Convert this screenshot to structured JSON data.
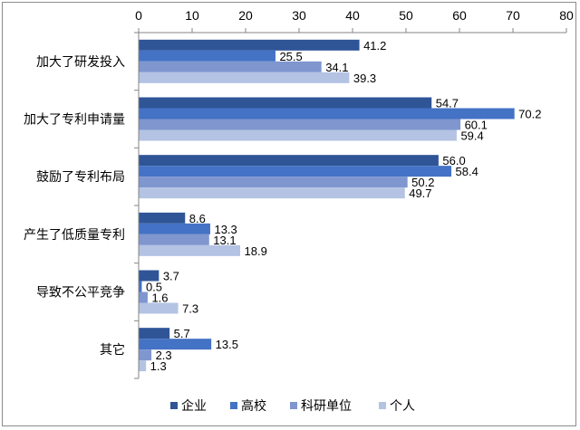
{
  "chart_data": {
    "type": "bar",
    "orientation": "horizontal",
    "title": "",
    "xlabel": "",
    "ylabel": "",
    "xlim": [
      0,
      80
    ],
    "x_ticks": [
      0,
      10,
      20,
      30,
      40,
      50,
      60,
      70,
      80
    ],
    "x_axis_position": "top",
    "grid": false,
    "legend_position": "bottom",
    "categories": [
      "加大了研发投入",
      "加大了专利申请量",
      "鼓励了专利布局",
      "产生了低质量专利",
      "导致不公平竞争",
      "其它"
    ],
    "series": [
      {
        "name": "企业",
        "color": "#2f5597",
        "values": [
          41.2,
          54.7,
          56.0,
          8.6,
          3.7,
          5.7
        ],
        "labels": [
          "41.2",
          "54.7",
          "56.0",
          "8.6",
          "3.7",
          "5.7"
        ]
      },
      {
        "name": "高校",
        "color": "#4472c4",
        "values": [
          25.5,
          70.2,
          58.4,
          13.3,
          0.5,
          13.5
        ],
        "labels": [
          "25.5",
          "70.2",
          "58.4",
          "13.3",
          "0.5",
          "13.5"
        ]
      },
      {
        "name": "科研单位",
        "color": "#7f96cf",
        "values": [
          34.1,
          60.1,
          50.2,
          13.1,
          1.6,
          2.3
        ],
        "labels": [
          "34.1",
          "60.1",
          "50.2",
          "13.1",
          "1.6",
          "2.3"
        ]
      },
      {
        "name": "个人",
        "color": "#b4c3e3",
        "values": [
          39.3,
          59.4,
          49.7,
          18.9,
          7.3,
          1.3
        ],
        "labels": [
          "39.3",
          "59.4",
          "49.7",
          "18.9",
          "7.3",
          "1.3"
        ]
      }
    ]
  }
}
